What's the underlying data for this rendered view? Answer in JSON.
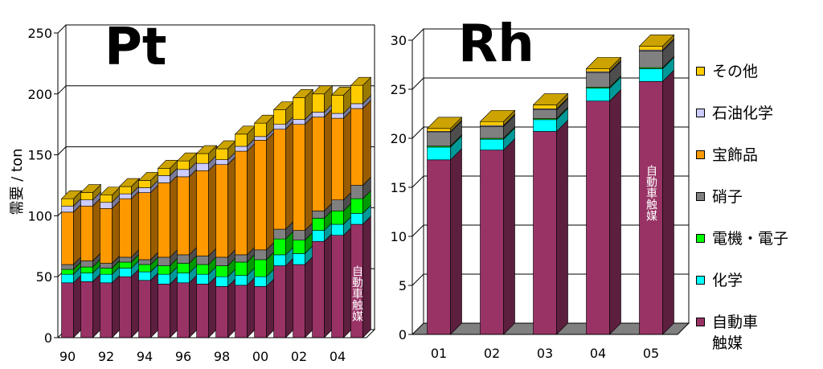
{
  "colors": {
    "auto": "#993366",
    "chem": "#00ffff",
    "elec": "#00ff00",
    "glass": "#808080",
    "jewel": "#ff9900",
    "petro": "#ccccff",
    "other": "#ffcc00"
  },
  "legend": [
    {
      "key": "other",
      "label": "その他"
    },
    {
      "key": "petro",
      "label": "石油化学"
    },
    {
      "key": "jewel",
      "label": "宝飾品"
    },
    {
      "key": "glass",
      "label": "硝子"
    },
    {
      "key": "elec",
      "label": "電機・電子"
    },
    {
      "key": "chem",
      "label": "化学"
    },
    {
      "key": "auto",
      "label": "自動車\n触媒"
    }
  ],
  "chart_data": [
    {
      "type": "bar",
      "stacked": true,
      "title": "Pt",
      "ylabel": "需要 / ton",
      "ylim": [
        0,
        250
      ],
      "yticks": [
        "0",
        "50",
        "100",
        "150",
        "200",
        "250"
      ],
      "tick_labels": [
        "90",
        "92",
        "94",
        "96",
        "98",
        "00",
        "02",
        "04"
      ],
      "categories": [
        "1990",
        "1991",
        "1992",
        "1993",
        "1994",
        "1995",
        "1996",
        "1997",
        "1998",
        "1999",
        "2000",
        "2001",
        "2002",
        "2003",
        "2004",
        "2005"
      ],
      "annotation": "自動車触媒",
      "grid": "horizontal",
      "series": [
        {
          "key": "auto",
          "name": "自動車触媒",
          "values": [
            45,
            46,
            45,
            50,
            47,
            44,
            45,
            44,
            42,
            43,
            42,
            59,
            60,
            79,
            84,
            93
          ]
        },
        {
          "key": "chem",
          "name": "化学",
          "values": [
            7,
            7,
            7,
            7,
            7,
            8,
            8,
            8,
            8,
            8,
            8,
            9,
            9,
            9,
            9,
            9
          ]
        },
        {
          "key": "elec",
          "name": "電機・電子",
          "values": [
            4,
            5,
            5,
            5,
            6,
            7,
            8,
            8,
            9,
            11,
            14,
            13,
            11,
            10,
            11,
            12
          ]
        },
        {
          "key": "glass",
          "name": "硝子",
          "values": [
            4,
            5,
            4,
            4,
            4,
            7,
            7,
            7,
            7,
            6,
            8,
            8,
            8,
            6,
            9,
            11
          ]
        },
        {
          "key": "jewel",
          "name": "宝飾品",
          "values": [
            43,
            45,
            45,
            48,
            55,
            61,
            64,
            70,
            76,
            85,
            90,
            82,
            87,
            77,
            67,
            63
          ]
        },
        {
          "key": "petro",
          "name": "石油化学",
          "values": [
            5,
            5,
            5,
            4,
            4,
            6,
            6,
            6,
            4,
            4,
            3,
            4,
            4,
            4,
            4,
            4
          ]
        },
        {
          "key": "other",
          "name": "その他",
          "values": [
            6,
            6,
            6,
            6,
            6,
            6,
            7,
            8,
            9,
            10,
            11,
            12,
            18,
            15,
            15,
            15
          ]
        }
      ]
    },
    {
      "type": "bar",
      "stacked": true,
      "title": "Rh",
      "ylim": [
        0,
        30
      ],
      "yticks": [
        "0",
        "5",
        "10",
        "15",
        "20",
        "25",
        "30"
      ],
      "categories": [
        "01",
        "02",
        "03",
        "04",
        "05"
      ],
      "tick_labels": [
        "01",
        "02",
        "03",
        "04",
        "05"
      ],
      "annotation": "自動車触媒",
      "grid": "horizontal",
      "series": [
        {
          "key": "auto",
          "name": "自動車触媒",
          "values": [
            17.8,
            18.8,
            20.7,
            23.8,
            25.8
          ]
        },
        {
          "key": "chem",
          "name": "化学",
          "values": [
            1.3,
            1.1,
            1.2,
            1.3,
            1.3
          ]
        },
        {
          "key": "elec",
          "name": "電機・電子",
          "values": [
            0.1,
            0.1,
            0.1,
            0.1,
            0.1
          ]
        },
        {
          "key": "glass",
          "name": "硝子",
          "values": [
            1.4,
            1.2,
            0.9,
            1.5,
            1.7
          ]
        },
        {
          "key": "jewel",
          "name": "宝飾品",
          "values": [
            0,
            0,
            0,
            0,
            0
          ]
        },
        {
          "key": "petro",
          "name": "石油化学",
          "values": [
            0.1,
            0.1,
            0.1,
            0.1,
            0.1
          ]
        },
        {
          "key": "other",
          "name": "その他",
          "values": [
            0.3,
            0.4,
            0.4,
            0.3,
            0.4
          ]
        }
      ]
    }
  ]
}
